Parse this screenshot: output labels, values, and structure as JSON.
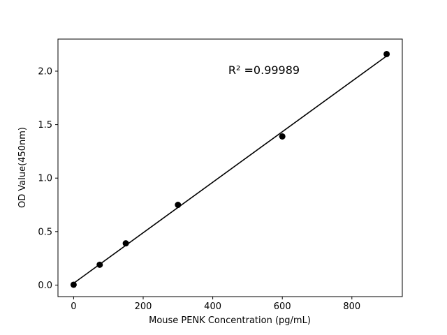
{
  "figure": {
    "background": "#ffffff"
  },
  "chart_data": {
    "type": "scatter",
    "title": "",
    "xlabel": "Mouse PENK Concentration (pg/mL)",
    "ylabel": "OD Value(450nm)",
    "annotation": "R² =0.99989",
    "x": [
      0,
      75,
      150,
      300,
      600,
      900
    ],
    "y": [
      0.003,
      0.19,
      0.39,
      0.75,
      1.39,
      2.16
    ],
    "x_ticks": [
      0,
      200,
      400,
      600,
      800
    ],
    "y_ticks": [
      0.0,
      0.5,
      1.0,
      1.5,
      2.0
    ],
    "xlim": [
      -45,
      945
    ],
    "ylim": [
      -0.108,
      2.3
    ],
    "marker_color": "#000000",
    "line_color": "#000000",
    "grid": false,
    "legend": "none",
    "fit": "linear-regression-through-points"
  }
}
